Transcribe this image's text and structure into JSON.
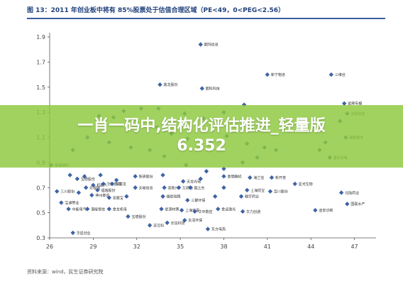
{
  "title": "图 13：2011 年创业板中将有 85%股票处于估值合理区域（PE<49，0<PEG<2.56）",
  "banner": {
    "line1": "一肖一码中,结构化评估推进_轻量版",
    "line2": "6.352"
  },
  "source": "资料来源：wind，民生证券研究院",
  "colors": {
    "marker": "#3f63a6",
    "banner": "#8cc83c",
    "title": "#1f3f7a"
  },
  "chart_data": {
    "type": "scatter",
    "title": "",
    "xlabel": "",
    "ylabel": "",
    "xlim": [
      26,
      48
    ],
    "ylim": [
      0.3,
      1.9
    ],
    "xticks": [
      26,
      29,
      32,
      35,
      38,
      41,
      44,
      47
    ],
    "yticks": [
      0.3,
      0.5,
      0.7,
      0.9,
      1.1,
      1.3,
      1.5,
      1.7,
      1.9
    ],
    "grid": false,
    "points": [
      {
        "x": 36.4,
        "y": 1.84,
        "label": "朗玛信息"
      },
      {
        "x": 33.6,
        "y": 1.52,
        "label": "鼎龙股份"
      },
      {
        "x": 36.5,
        "y": 1.49,
        "label": "朗科科技"
      },
      {
        "x": 41.0,
        "y": 1.6,
        "label": "新宁物流"
      },
      {
        "x": 45.4,
        "y": 1.6,
        "label": "三维丝"
      },
      {
        "x": 46.3,
        "y": 1.37,
        "label": "星辉车模"
      },
      {
        "x": 46.5,
        "y": 1.29,
        "label": "汉得信息"
      },
      {
        "x": 46.0,
        "y": 1.23,
        "label": ""
      },
      {
        "x": 46.4,
        "y": 1.1,
        "label": "国民技术"
      },
      {
        "x": 45.0,
        "y": 1.06,
        "label": ""
      },
      {
        "x": 44.6,
        "y": 1.0,
        "label": ""
      },
      {
        "x": 45.3,
        "y": 0.94,
        "label": "金利华电"
      },
      {
        "x": 39.4,
        "y": 1.36,
        "label": ""
      },
      {
        "x": 38.0,
        "y": 1.3,
        "label": ""
      },
      {
        "x": 33.5,
        "y": 1.33,
        "label": ""
      },
      {
        "x": 32.3,
        "y": 1.33,
        "label": ""
      },
      {
        "x": 31.1,
        "y": 1.31,
        "label": ""
      },
      {
        "x": 30.4,
        "y": 1.26,
        "label": ""
      },
      {
        "x": 29.4,
        "y": 1.27,
        "label": ""
      },
      {
        "x": 35.3,
        "y": 1.29,
        "label": ""
      },
      {
        "x": 36.6,
        "y": 1.25,
        "label": ""
      },
      {
        "x": 33.4,
        "y": 1.18,
        "label": ""
      },
      {
        "x": 34.4,
        "y": 1.13,
        "label": ""
      },
      {
        "x": 35.5,
        "y": 1.09,
        "label": ""
      },
      {
        "x": 37.1,
        "y": 1.06,
        "label": ""
      },
      {
        "x": 38.2,
        "y": 1.11,
        "label": ""
      },
      {
        "x": 39.6,
        "y": 1.05,
        "label": ""
      },
      {
        "x": 40.8,
        "y": 1.02,
        "label": ""
      },
      {
        "x": 41.6,
        "y": 1.0,
        "label": ""
      },
      {
        "x": 40.3,
        "y": 0.94,
        "label": ""
      },
      {
        "x": 39.3,
        "y": 0.9,
        "label": ""
      },
      {
        "x": 38.0,
        "y": 0.85,
        "label": ""
      },
      {
        "x": 36.8,
        "y": 0.83,
        "label": ""
      },
      {
        "x": 35.4,
        "y": 0.88,
        "label": ""
      },
      {
        "x": 33.9,
        "y": 0.95,
        "label": ""
      },
      {
        "x": 32.9,
        "y": 1.0,
        "label": ""
      },
      {
        "x": 31.6,
        "y": 1.02,
        "label": ""
      },
      {
        "x": 30.1,
        "y": 1.06,
        "label": ""
      },
      {
        "x": 28.6,
        "y": 1.1,
        "label": ""
      },
      {
        "x": 27.6,
        "y": 1.0,
        "label": ""
      },
      {
        "x": 26.1,
        "y": 0.88,
        "label": "坚瑞消防"
      },
      {
        "x": 27.4,
        "y": 0.8,
        "label": ""
      },
      {
        "x": 28.4,
        "y": 0.79,
        "label": ""
      },
      {
        "x": 29.5,
        "y": 0.8,
        "label": ""
      },
      {
        "x": 30.6,
        "y": 0.76,
        "label": ""
      },
      {
        "x": 31.9,
        "y": 0.79,
        "label": "新研股份"
      },
      {
        "x": 33.8,
        "y": 0.8,
        "label": ""
      },
      {
        "x": 35.2,
        "y": 0.75,
        "label": "天龙光电"
      },
      {
        "x": 36.4,
        "y": 0.77,
        "label": ""
      },
      {
        "x": 38.0,
        "y": 0.79,
        "label": "金明精机"
      },
      {
        "x": 39.8,
        "y": 0.78,
        "label": "海兰信"
      },
      {
        "x": 41.3,
        "y": 0.78,
        "label": "新开普"
      },
      {
        "x": 42.9,
        "y": 0.73,
        "label": "星河生物"
      },
      {
        "x": 27.9,
        "y": 0.77,
        "label": "宝德股份"
      },
      {
        "x": 29.0,
        "y": 0.72,
        "label": "机器人"
      },
      {
        "x": 29.7,
        "y": 0.73,
        "label": "华策影视"
      },
      {
        "x": 30.3,
        "y": 0.73,
        "label": "东富龙"
      },
      {
        "x": 28.5,
        "y": 0.7,
        "label": "乐视网"
      },
      {
        "x": 29.3,
        "y": 0.68,
        "label": "福瑞股份"
      },
      {
        "x": 31.9,
        "y": 0.7,
        "label": "天喻信息"
      },
      {
        "x": 33.9,
        "y": 0.7,
        "label": "高新兴"
      },
      {
        "x": 34.9,
        "y": 0.7,
        "label": "万邦达"
      },
      {
        "x": 35.7,
        "y": 0.7,
        "label": "银之杰"
      },
      {
        "x": 38.0,
        "y": 0.7,
        "label": ""
      },
      {
        "x": 39.6,
        "y": 0.68,
        "label": "上海凯宝"
      },
      {
        "x": 41.2,
        "y": 0.67,
        "label": "百川股份"
      },
      {
        "x": 26.5,
        "y": 0.67,
        "label": "三川股份"
      },
      {
        "x": 28.0,
        "y": 0.66,
        "label": ""
      },
      {
        "x": 28.9,
        "y": 0.64,
        "label": "神州泰岳"
      },
      {
        "x": 30.1,
        "y": 0.62,
        "label": "安居宝"
      },
      {
        "x": 31.3,
        "y": 0.63,
        "label": ""
      },
      {
        "x": 33.8,
        "y": 0.63,
        "label": "福星晓程"
      },
      {
        "x": 35.5,
        "y": 0.6,
        "label": "三聚环保"
      },
      {
        "x": 37.4,
        "y": 0.63,
        "label": ""
      },
      {
        "x": 39.2,
        "y": 0.63,
        "label": "翰宇药业"
      },
      {
        "x": 26.8,
        "y": 0.58,
        "label": "宝通带业"
      },
      {
        "x": 27.3,
        "y": 0.53,
        "label": "中能电气"
      },
      {
        "x": 28.6,
        "y": 0.53,
        "label": "潜能恒信"
      },
      {
        "x": 30.1,
        "y": 0.53,
        "label": "金龙机电"
      },
      {
        "x": 33.7,
        "y": 0.53,
        "label": "星源材质"
      },
      {
        "x": 35.1,
        "y": 0.52,
        "label": "上海佳豪"
      },
      {
        "x": 36.0,
        "y": 0.51,
        "label": "华中数控"
      },
      {
        "x": 37.6,
        "y": 0.53,
        "label": "金运激光"
      },
      {
        "x": 39.3,
        "y": 0.51,
        "label": "华力创通"
      },
      {
        "x": 44.3,
        "y": 0.52,
        "label": "迪安诊断"
      },
      {
        "x": 46.5,
        "y": 0.57,
        "label": "国联水产"
      },
      {
        "x": 46.1,
        "y": 0.66,
        "label": "北陆药业"
      },
      {
        "x": 31.4,
        "y": 0.47,
        "label": "宝德股份"
      },
      {
        "x": 32.9,
        "y": 0.4,
        "label": "苏交科"
      },
      {
        "x": 34.1,
        "y": 0.42,
        "label": "长信科技"
      },
      {
        "x": 35.3,
        "y": 0.44,
        "label": "永清环保"
      },
      {
        "x": 36.9,
        "y": 0.37,
        "label": "东方电热"
      },
      {
        "x": 27.6,
        "y": 0.34,
        "label": "华星创业"
      }
    ]
  }
}
